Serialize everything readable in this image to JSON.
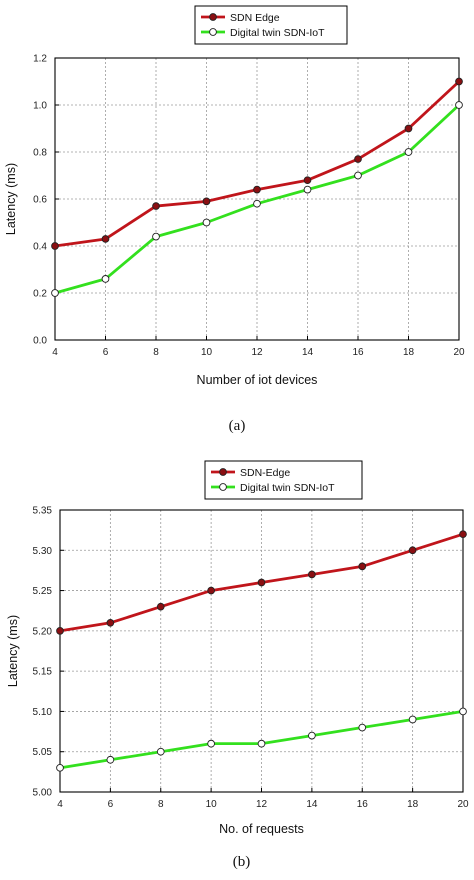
{
  "chart_data": [
    {
      "type": "line",
      "caption": "(a)",
      "xlabel": "Number of iot devices",
      "ylabel": "Latency (ms)",
      "x": [
        4,
        6,
        8,
        10,
        12,
        14,
        16,
        18,
        20
      ],
      "xlim": [
        4,
        20
      ],
      "ylim": [
        0.0,
        1.2
      ],
      "xticks": [
        "4",
        "6",
        "8",
        "10",
        "12",
        "14",
        "16",
        "18",
        "20"
      ],
      "yticks": [
        "0.0",
        "0.2",
        "0.4",
        "0.6",
        "0.8",
        "1.0",
        "1.2"
      ],
      "grid": true,
      "legend_position": "top-center",
      "series": [
        {
          "name": "SDN Edge",
          "color": "#c0151b",
          "marker_fill": "#8a0f12",
          "values": [
            0.4,
            0.43,
            0.57,
            0.59,
            0.64,
            0.68,
            0.77,
            0.9,
            1.1
          ]
        },
        {
          "name": "Digital twin SDN-IoT",
          "color": "#33e01e",
          "marker_fill": "#ffffff",
          "values": [
            0.2,
            0.26,
            0.44,
            0.5,
            0.58,
            0.64,
            0.7,
            0.8,
            1.0
          ]
        }
      ]
    },
    {
      "type": "line",
      "caption": "(b)",
      "xlabel": "No. of requests",
      "ylabel": "Latency (ms)",
      "x": [
        4,
        6,
        8,
        10,
        12,
        14,
        16,
        18,
        20
      ],
      "xlim": [
        4,
        20
      ],
      "ylim": [
        5.0,
        5.35
      ],
      "xticks": [
        "4",
        "6",
        "8",
        "10",
        "12",
        "14",
        "16",
        "18",
        "20"
      ],
      "yticks": [
        "5.00",
        "5.05",
        "5.10",
        "5.15",
        "5.20",
        "5.25",
        "5.30",
        "5.35"
      ],
      "grid": true,
      "legend_position": "top-center",
      "series": [
        {
          "name": "SDN-Edge",
          "color": "#c0151b",
          "marker_fill": "#8a0f12",
          "values": [
            5.2,
            5.21,
            5.23,
            5.25,
            5.26,
            5.27,
            5.28,
            5.3,
            5.32
          ]
        },
        {
          "name": "Digital twin SDN-IoT",
          "color": "#33e01e",
          "marker_fill": "#ffffff",
          "values": [
            5.03,
            5.04,
            5.05,
            5.06,
            5.06,
            5.07,
            5.08,
            5.09,
            5.1
          ]
        }
      ]
    }
  ]
}
